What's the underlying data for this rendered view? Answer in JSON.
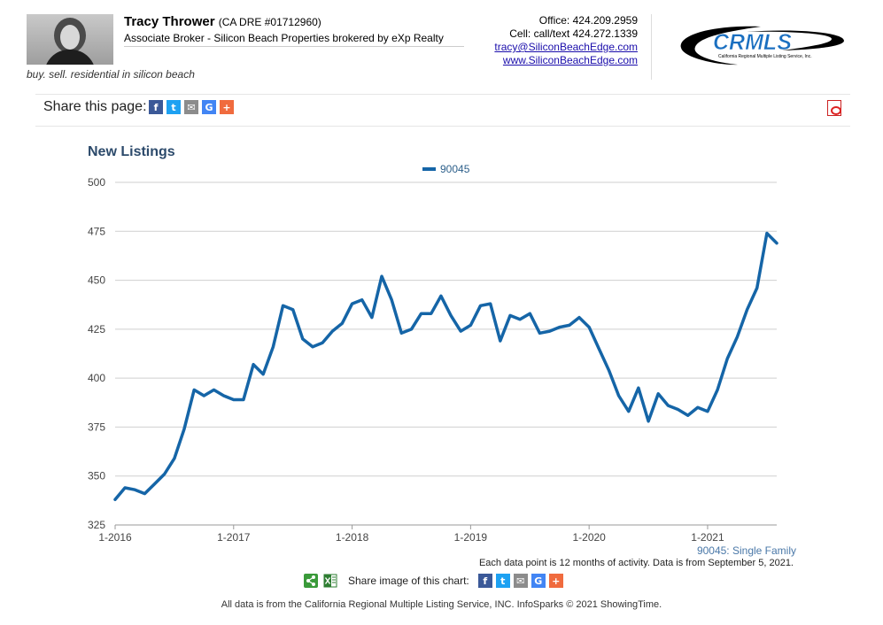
{
  "agent": {
    "name": "Tracy Thrower",
    "dre": "(CA DRE #01712960)",
    "title": "Associate Broker - Silicon Beach Properties brokered by eXp Realty",
    "tagline": "buy. sell. residential in silicon beach"
  },
  "contact": {
    "office": "Office: 424.209.2959",
    "cell": "Cell: call/text 424.272.1339",
    "email": "tracy@SiliconBeachEdge.com",
    "website": "www.SiliconBeachEdge.com"
  },
  "logo": {
    "name": "CRMLS",
    "subtitle": "California Regional Multiple Listing Service, Inc."
  },
  "share_page": {
    "label": "Share this page:"
  },
  "share_image": {
    "label": "Share image of this chart:"
  },
  "icons": {
    "facebook": "f",
    "twitter": "t",
    "email": "✉",
    "google": "G",
    "plus": "+"
  },
  "colors": {
    "series": "#1565a7",
    "title": "#2c4a6b"
  },
  "chart_data": {
    "type": "line",
    "title": "New Listings",
    "x": [
      "2016-01",
      "2016-02",
      "2016-03",
      "2016-04",
      "2016-05",
      "2016-06",
      "2016-07",
      "2016-08",
      "2016-09",
      "2016-10",
      "2016-11",
      "2016-12",
      "2017-01",
      "2017-02",
      "2017-03",
      "2017-04",
      "2017-05",
      "2017-06",
      "2017-07",
      "2017-08",
      "2017-09",
      "2017-10",
      "2017-11",
      "2017-12",
      "2018-01",
      "2018-02",
      "2018-03",
      "2018-04",
      "2018-05",
      "2018-06",
      "2018-07",
      "2018-08",
      "2018-09",
      "2018-10",
      "2018-11",
      "2018-12",
      "2019-01",
      "2019-02",
      "2019-03",
      "2019-04",
      "2019-05",
      "2019-06",
      "2019-07",
      "2019-08",
      "2019-09",
      "2019-10",
      "2019-11",
      "2019-12",
      "2020-01",
      "2020-02",
      "2020-03",
      "2020-04",
      "2020-05",
      "2020-06",
      "2020-07",
      "2020-08",
      "2020-09",
      "2020-10",
      "2020-11",
      "2020-12",
      "2021-01",
      "2021-02",
      "2021-03",
      "2021-04",
      "2021-05",
      "2021-06",
      "2021-07",
      "2021-08"
    ],
    "series": [
      {
        "name": "90045",
        "color": "#1565a7",
        "values": [
          338,
          344,
          343,
          341,
          346,
          351,
          359,
          374,
          394,
          391,
          394,
          391,
          389,
          389,
          407,
          402,
          416,
          437,
          435,
          420,
          416,
          418,
          424,
          428,
          438,
          440,
          431,
          452,
          440,
          423,
          425,
          433,
          433,
          442,
          432,
          424,
          427,
          437,
          438,
          419,
          432,
          430,
          433,
          423,
          424,
          426,
          427,
          431,
          426,
          415,
          404,
          391,
          383,
          395,
          378,
          392,
          386,
          384,
          381,
          385,
          383,
          394,
          410,
          421,
          435,
          446,
          474,
          469
        ]
      }
    ],
    "xtick_labels": [
      "1-2016",
      "1-2017",
      "1-2018",
      "1-2019",
      "1-2020",
      "1-2021"
    ],
    "yticks": [
      325,
      350,
      375,
      400,
      425,
      450,
      475,
      500
    ],
    "ylim": [
      325,
      500
    ],
    "grid": true,
    "legend": "top-center"
  },
  "footnotes": {
    "series_type": "90045: Single Family",
    "data_note": "Each data point is 12 months of activity. Data is from September 5, 2021."
  },
  "disclaimer": "All data is from the California Regional Multiple Listing Service, INC. InfoSparks © 2021 ShowingTime."
}
